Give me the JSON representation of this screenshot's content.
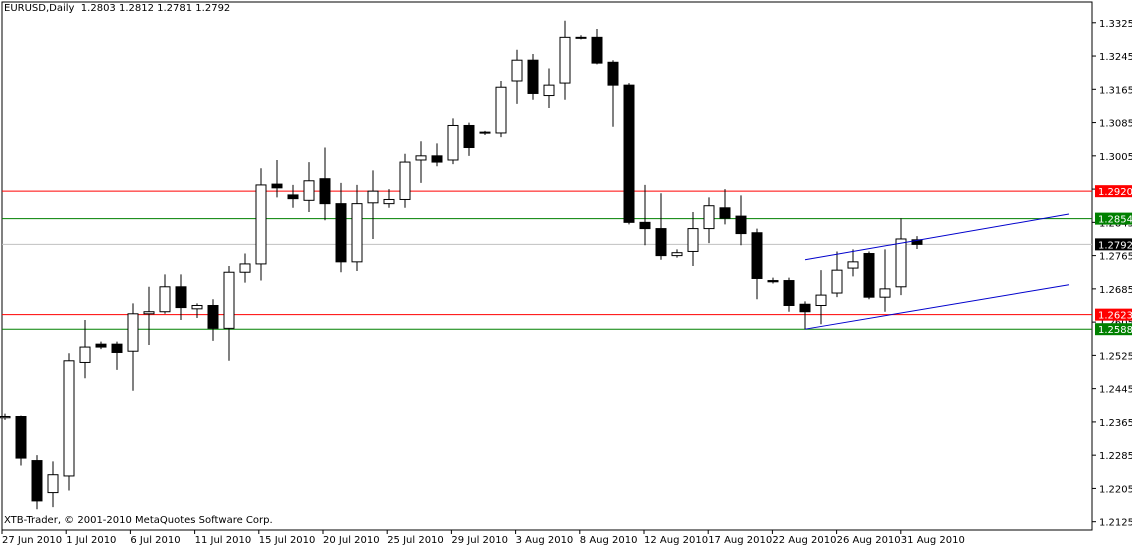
{
  "header": {
    "symbol": "EURUSD,Daily",
    "ohlc": "1.2803 1.2812 1.2781 1.2792"
  },
  "copyright": "XTB-Trader, © 2001-2010 MetaQuotes Software Corp.",
  "colors": {
    "background": "#ffffff",
    "frame": "#000000",
    "candle_up": "#ffffff",
    "candle_down": "#000000",
    "resistance_line": "#ff0000",
    "support_line": "#008000",
    "channel_line": "#0000cc",
    "bid_line": "#c0c0c0"
  },
  "chart_data": {
    "type": "candlestick",
    "symbol": "EURUSD",
    "timeframe": "Daily",
    "ylim": [
      1.2105,
      1.3375
    ],
    "y_ticks": [
      "1.3325",
      "1.3245",
      "1.3165",
      "1.3085",
      "1.3005",
      "1.2925",
      "1.2845",
      "1.2765",
      "1.2685",
      "1.2605",
      "1.2525",
      "1.2445",
      "1.2365",
      "1.2285",
      "1.2205",
      "1.2125"
    ],
    "x_labels": [
      "27 Jun 2010",
      "1 Jul 2010",
      "6 Jul 2010",
      "11 Jul 2010",
      "15 Jul 2010",
      "20 Jul 2010",
      "25 Jul 2010",
      "29 Jul 2010",
      "3 Aug 2010",
      "8 Aug 2010",
      "12 Aug 2010",
      "17 Aug 2010",
      "22 Aug 2010",
      "26 Aug 2010",
      "31 Aug 2010"
    ],
    "candles": [
      {
        "o": 1.2375,
        "h": 1.2385,
        "l": 1.237,
        "c": 1.2378
      },
      {
        "o": 1.2378,
        "h": 1.238,
        "l": 1.226,
        "c": 1.2278
      },
      {
        "o": 1.2272,
        "h": 1.2285,
        "l": 1.2155,
        "c": 1.2175
      },
      {
        "o": 1.2195,
        "h": 1.227,
        "l": 1.216,
        "c": 1.2238
      },
      {
        "o": 1.2235,
        "h": 1.253,
        "l": 1.22,
        "c": 1.2512
      },
      {
        "o": 1.2508,
        "h": 1.261,
        "l": 1.247,
        "c": 1.2545
      },
      {
        "o": 1.2552,
        "h": 1.2558,
        "l": 1.254,
        "c": 1.2545
      },
      {
        "o": 1.2552,
        "h": 1.2558,
        "l": 1.249,
        "c": 1.2532
      },
      {
        "o": 1.2535,
        "h": 1.265,
        "l": 1.244,
        "c": 1.2625
      },
      {
        "o": 1.2625,
        "h": 1.269,
        "l": 1.255,
        "c": 1.263
      },
      {
        "o": 1.263,
        "h": 1.272,
        "l": 1.2625,
        "c": 1.269
      },
      {
        "o": 1.269,
        "h": 1.272,
        "l": 1.261,
        "c": 1.264
      },
      {
        "o": 1.2637,
        "h": 1.265,
        "l": 1.2615,
        "c": 1.2645
      },
      {
        "o": 1.2645,
        "h": 1.266,
        "l": 1.256,
        "c": 1.259
      },
      {
        "o": 1.259,
        "h": 1.274,
        "l": 1.2512,
        "c": 1.2725
      },
      {
        "o": 1.2725,
        "h": 1.277,
        "l": 1.27,
        "c": 1.2745
      },
      {
        "o": 1.2745,
        "h": 1.2975,
        "l": 1.2705,
        "c": 1.2935
      },
      {
        "o": 1.2937,
        "h": 1.2995,
        "l": 1.2905,
        "c": 1.2928
      },
      {
        "o": 1.2911,
        "h": 1.2935,
        "l": 1.288,
        "c": 1.2902
      },
      {
        "o": 1.2898,
        "h": 1.299,
        "l": 1.287,
        "c": 1.2945
      },
      {
        "o": 1.295,
        "h": 1.3025,
        "l": 1.285,
        "c": 1.289
      },
      {
        "o": 1.289,
        "h": 1.294,
        "l": 1.2725,
        "c": 1.275
      },
      {
        "o": 1.275,
        "h": 1.2935,
        "l": 1.2728,
        "c": 1.289
      },
      {
        "o": 1.2892,
        "h": 1.297,
        "l": 1.2805,
        "c": 1.292
      },
      {
        "o": 1.289,
        "h": 1.2925,
        "l": 1.288,
        "c": 1.29
      },
      {
        "o": 1.29,
        "h": 1.301,
        "l": 1.288,
        "c": 1.299
      },
      {
        "o": 1.2995,
        "h": 1.304,
        "l": 1.294,
        "c": 1.3005
      },
      {
        "o": 1.3005,
        "h": 1.3035,
        "l": 1.298,
        "c": 1.299
      },
      {
        "o": 1.2995,
        "h": 1.3095,
        "l": 1.2985,
        "c": 1.3078
      },
      {
        "o": 1.3078,
        "h": 1.3085,
        "l": 1.3005,
        "c": 1.3025
      },
      {
        "o": 1.306,
        "h": 1.3065,
        "l": 1.3055,
        "c": 1.3062
      },
      {
        "o": 1.306,
        "h": 1.3185,
        "l": 1.305,
        "c": 1.317
      },
      {
        "o": 1.3185,
        "h": 1.326,
        "l": 1.313,
        "c": 1.3235
      },
      {
        "o": 1.3235,
        "h": 1.325,
        "l": 1.314,
        "c": 1.3155
      },
      {
        "o": 1.315,
        "h": 1.3215,
        "l": 1.312,
        "c": 1.3175
      },
      {
        "o": 1.318,
        "h": 1.333,
        "l": 1.314,
        "c": 1.329
      },
      {
        "o": 1.329,
        "h": 1.3295,
        "l": 1.3285,
        "c": 1.3288
      },
      {
        "o": 1.329,
        "h": 1.331,
        "l": 1.3225,
        "c": 1.3228
      },
      {
        "o": 1.323,
        "h": 1.3235,
        "l": 1.3075,
        "c": 1.3175
      },
      {
        "o": 1.3175,
        "h": 1.318,
        "l": 1.284,
        "c": 1.2845
      },
      {
        "o": 1.2845,
        "h": 1.2935,
        "l": 1.279,
        "c": 1.283
      },
      {
        "o": 1.283,
        "h": 1.2915,
        "l": 1.2755,
        "c": 1.2765
      },
      {
        "o": 1.2765,
        "h": 1.278,
        "l": 1.276,
        "c": 1.2772
      },
      {
        "o": 1.2775,
        "h": 1.287,
        "l": 1.274,
        "c": 1.283
      },
      {
        "o": 1.283,
        "h": 1.2905,
        "l": 1.2795,
        "c": 1.2885
      },
      {
        "o": 1.288,
        "h": 1.2925,
        "l": 1.284,
        "c": 1.2855
      },
      {
        "o": 1.286,
        "h": 1.291,
        "l": 1.279,
        "c": 1.2818
      },
      {
        "o": 1.282,
        "h": 1.283,
        "l": 1.266,
        "c": 1.271
      },
      {
        "o": 1.2705,
        "h": 1.2712,
        "l": 1.2698,
        "c": 1.2702
      },
      {
        "o": 1.2705,
        "h": 1.2712,
        "l": 1.263,
        "c": 1.2645
      },
      {
        "o": 1.2648,
        "h": 1.2655,
        "l": 1.2588,
        "c": 1.263
      },
      {
        "o": 1.2645,
        "h": 1.273,
        "l": 1.26,
        "c": 1.267
      },
      {
        "o": 1.2675,
        "h": 1.2775,
        "l": 1.2665,
        "c": 1.273
      },
      {
        "o": 1.2735,
        "h": 1.278,
        "l": 1.2715,
        "c": 1.275
      },
      {
        "o": 1.277,
        "h": 1.2775,
        "l": 1.266,
        "c": 1.2665
      },
      {
        "o": 1.2665,
        "h": 1.278,
        "l": 1.263,
        "c": 1.2685
      },
      {
        "o": 1.269,
        "h": 1.2855,
        "l": 1.267,
        "c": 1.2805
      },
      {
        "o": 1.2803,
        "h": 1.2812,
        "l": 1.2781,
        "c": 1.2792
      }
    ],
    "horizontal_levels": [
      {
        "value": 1.292,
        "label": "1.2920",
        "color": "resistance_line"
      },
      {
        "value": 1.2854,
        "label": "1.2854",
        "color": "support_line"
      },
      {
        "value": 1.2792,
        "label": "1.2792",
        "color": "bid_line"
      },
      {
        "value": 1.2623,
        "label": "1.2623",
        "color": "resistance_line"
      },
      {
        "value": 1.2588,
        "label": "1.2588",
        "color": "support_line"
      }
    ],
    "trend_lines": [
      {
        "x1": 50.0,
        "y1": 1.2755,
        "x2": 66.5,
        "y2": 1.2865
      },
      {
        "x1": 50.0,
        "y1": 1.2588,
        "x2": 66.5,
        "y2": 1.2695
      }
    ]
  }
}
